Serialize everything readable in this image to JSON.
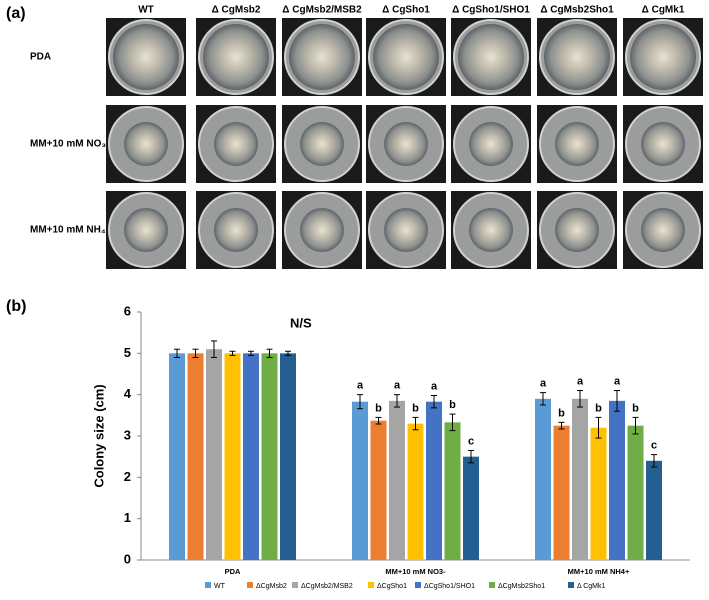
{
  "panel_a": {
    "label": "(a)",
    "columns": [
      "WT",
      "Δ CgMsb2",
      "Δ CgMsb2/MSB2",
      "Δ CgSho1",
      "Δ CgSho1/SHO1",
      "Δ CgMsb2Sho1",
      "Δ CgMk1"
    ],
    "rows": [
      "PDA",
      "MM+10 mM NO₃⁻",
      "MM+10 mM NH₄⁺"
    ]
  },
  "chart_data": {
    "type": "bar",
    "panel_label": "(b)",
    "ylabel": "Colony size (cm)",
    "categories": [
      "PDA",
      "MM+10 mM NO3-",
      "MM+10 mM NH4+"
    ],
    "annotation": "N/S",
    "series": [
      {
        "name": "WT",
        "color": "#5b9bd5",
        "values": [
          5.0,
          3.83,
          3.9
        ],
        "errors": [
          0.1,
          0.17,
          0.15
        ],
        "letters": [
          null,
          "a",
          "a"
        ]
      },
      {
        "name": "ΔCgMsb2",
        "color": "#ed7d31",
        "values": [
          5.0,
          3.37,
          3.25
        ],
        "errors": [
          0.1,
          0.08,
          0.08
        ],
        "letters": [
          null,
          "b",
          "b"
        ]
      },
      {
        "name": "ΔCgMsb2/MSB2",
        "color": "#a5a5a5",
        "values": [
          5.1,
          3.85,
          3.9
        ],
        "errors": [
          0.2,
          0.15,
          0.2
        ],
        "letters": [
          null,
          "a",
          "a"
        ]
      },
      {
        "name": "ΔCgSho1",
        "color": "#ffc000",
        "values": [
          5.0,
          3.3,
          3.2
        ],
        "errors": [
          0.05,
          0.15,
          0.25
        ],
        "letters": [
          null,
          "b",
          "b"
        ]
      },
      {
        "name": "ΔCgSho1/SHO1",
        "color": "#4472c4",
        "values": [
          5.0,
          3.83,
          3.85
        ],
        "errors": [
          0.05,
          0.15,
          0.25
        ],
        "letters": [
          null,
          "a",
          "a"
        ]
      },
      {
        "name": "ΔCgMsb2Sho1",
        "color": "#70ad47",
        "values": [
          5.0,
          3.33,
          3.25
        ],
        "errors": [
          0.1,
          0.2,
          0.2
        ],
        "letters": [
          null,
          "b",
          "b"
        ]
      },
      {
        "name": "Δ CgMk1",
        "color": "#255e91",
        "values": [
          5.0,
          2.5,
          2.4
        ],
        "errors": [
          0.05,
          0.15,
          0.15
        ],
        "letters": [
          null,
          "c",
          "c"
        ]
      }
    ],
    "ylim": [
      0,
      6
    ],
    "yticks": [
      0,
      1,
      2,
      3,
      4,
      5,
      6
    ]
  }
}
